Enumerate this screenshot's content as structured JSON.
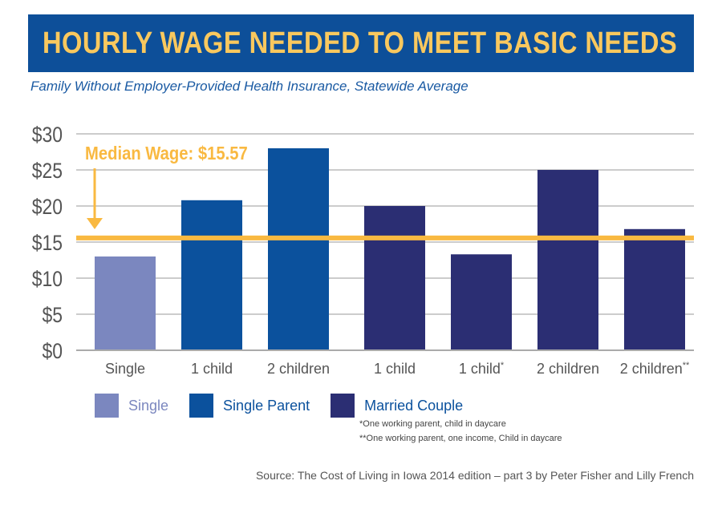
{
  "title": "HOURLY WAGE NEEDED TO MEET BASIC NEEDS",
  "subtitle": "Family Without Employer-Provided Health Insurance, Statewide Average",
  "colors": {
    "title_bg": "#0d4f99",
    "title_text": "#f9c85e",
    "single": "#7b87bf",
    "single_parent": "#0b519d",
    "married_couple": "#2b2e73",
    "median_line": "#f9b941",
    "grid": "#cccccc"
  },
  "chart_data": {
    "type": "bar",
    "ylim": [
      0,
      30
    ],
    "yticks": [
      0,
      5,
      10,
      15,
      20,
      25,
      30
    ],
    "ytick_labels": [
      "$0",
      "$5",
      "$10",
      "$15",
      "$20",
      "$25",
      "$30"
    ],
    "grid": true,
    "categories": [
      {
        "label": "Single",
        "sup": "",
        "value": 13.0,
        "group": "single"
      },
      {
        "label": "1 child",
        "sup": "",
        "value": 20.8,
        "group": "single_parent"
      },
      {
        "label": "2 children",
        "sup": "",
        "value": 28.0,
        "group": "single_parent"
      },
      {
        "label": "1 child",
        "sup": "",
        "value": 20.0,
        "group": "married_couple"
      },
      {
        "label": "1 child",
        "sup": "*",
        "value": 13.3,
        "group": "married_couple"
      },
      {
        "label": "2 children",
        "sup": "",
        "value": 25.0,
        "group": "married_couple"
      },
      {
        "label": "2 children",
        "sup": "**",
        "value": 16.8,
        "group": "married_couple"
      }
    ],
    "median": {
      "value": 15.57,
      "label": "Median Wage: $15.57"
    },
    "legend": [
      {
        "key": "single",
        "label": "Single"
      },
      {
        "key": "single_parent",
        "label": "Single Parent"
      },
      {
        "key": "married_couple",
        "label": "Married Couple"
      }
    ],
    "legend_position": "bottom-left"
  },
  "notes": [
    "*One working parent, child in daycare",
    "**One working parent, one income, Child in daycare"
  ],
  "source": "Source: The Cost of Living in Iowa 2014 edition – part 3 by Peter Fisher and Lilly French"
}
